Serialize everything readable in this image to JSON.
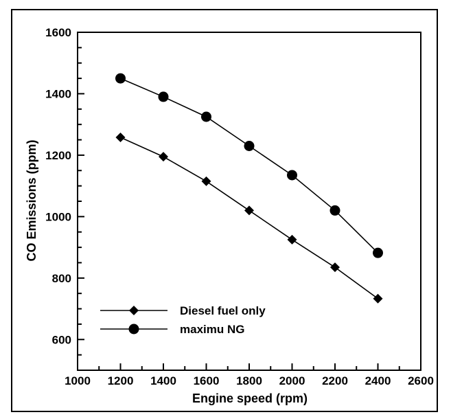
{
  "chart_data": {
    "type": "line",
    "title": "",
    "xlabel": "Engine speed (rpm)",
    "ylabel": "CO Emissions (ppm)",
    "xlim": [
      1000,
      2600
    ],
    "ylim": [
      500,
      1600
    ],
    "x_ticks": [
      1000,
      1200,
      1400,
      1600,
      1800,
      2000,
      2200,
      2400,
      2600
    ],
    "y_ticks": [
      600,
      800,
      1000,
      1200,
      1400,
      1600
    ],
    "x_minor_step": 100,
    "y_minor_step": 50,
    "grid": false,
    "legend_position": "bottom-left",
    "series": [
      {
        "name": "Diesel fuel only",
        "marker": "diamond",
        "color": "#000000",
        "x": [
          1200,
          1400,
          1600,
          1800,
          2000,
          2200,
          2400
        ],
        "y": [
          1258,
          1195,
          1115,
          1020,
          925,
          835,
          733
        ]
      },
      {
        "name": "maximu NG",
        "marker": "circle",
        "color": "#000000",
        "x": [
          1200,
          1400,
          1600,
          1800,
          2000,
          2200,
          2400
        ],
        "y": [
          1450,
          1390,
          1325,
          1230,
          1135,
          1020,
          882
        ]
      }
    ]
  }
}
